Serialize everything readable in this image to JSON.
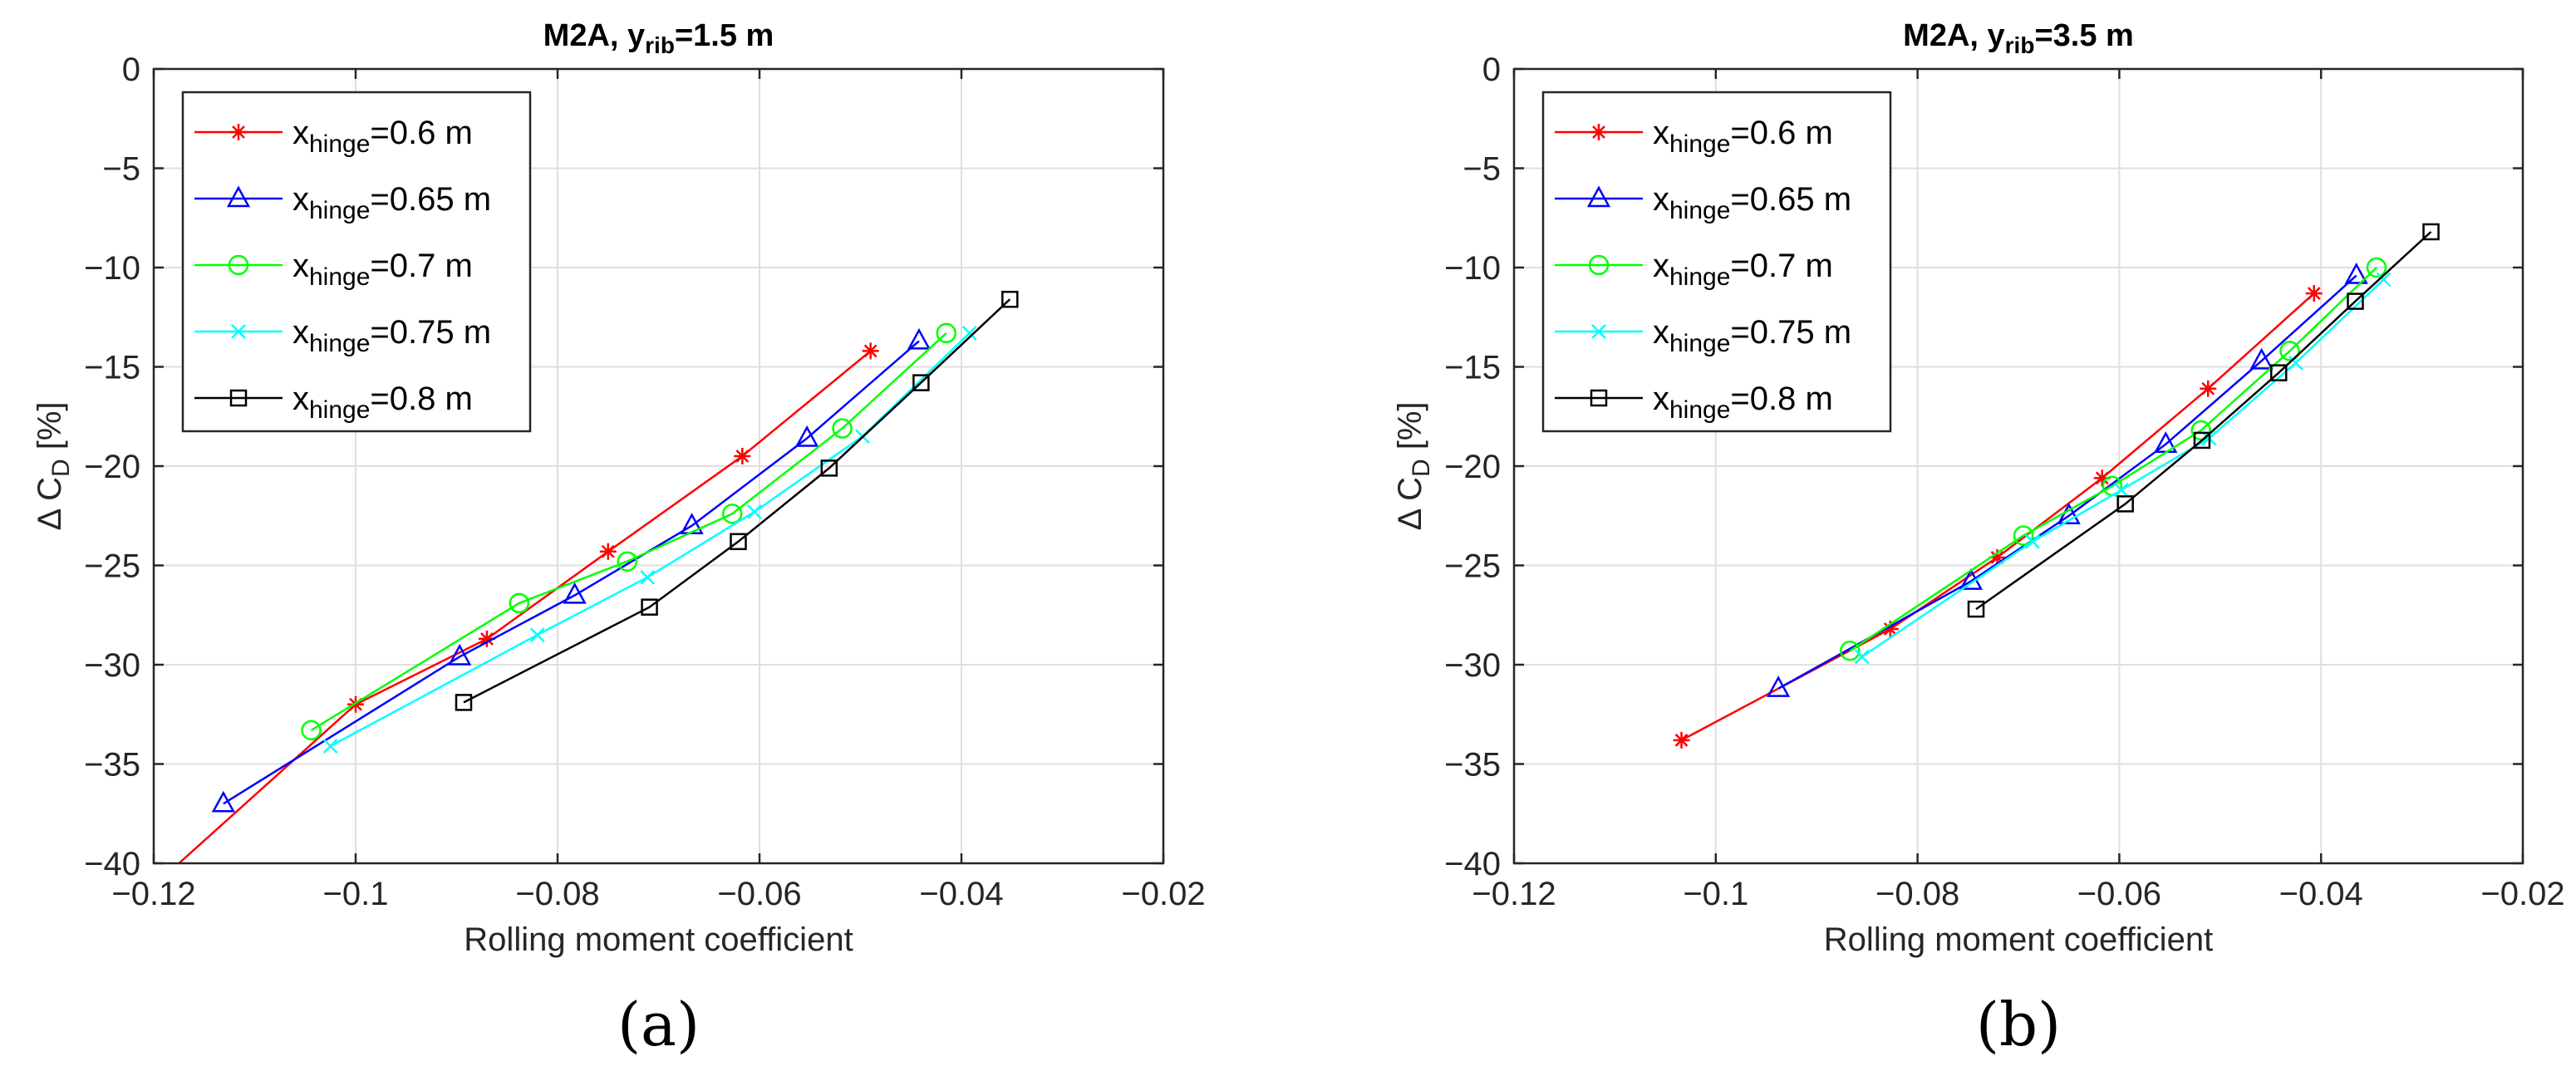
{
  "chart_data": [
    {
      "type": "line",
      "panel_label": "(a)",
      "title": {
        "main": "M2A, y",
        "sub": "rib",
        "tail": "=1.5 m"
      },
      "xlabel": "Rolling moment coefficient",
      "ylabel": {
        "main": "Δ C",
        "sub": "D",
        "tail": " [%]"
      },
      "xlim": [
        -0.12,
        -0.02
      ],
      "ylim": [
        -40,
        0
      ],
      "xticks": [
        -0.12,
        -0.1,
        -0.08,
        -0.06,
        -0.04,
        -0.02
      ],
      "xtick_labels": [
        "−0.12",
        "−0.1",
        "−0.08",
        "−0.06",
        "−0.04",
        "−0.02"
      ],
      "yticks": [
        0,
        -5,
        -10,
        -15,
        -20,
        -25,
        -30,
        -35,
        -40
      ],
      "ytick_labels": [
        "0",
        "−5",
        "−10",
        "−15",
        "−20",
        "−25",
        "−30",
        "−35",
        "−40"
      ],
      "grid": true,
      "legend_position": "top-left",
      "series": [
        {
          "name": {
            "main": "x",
            "sub": "hinge",
            "tail": "=0.6 m"
          },
          "color": "#ff0000",
          "marker": "star",
          "x": [
            -0.1175,
            -0.1,
            -0.087,
            -0.075,
            -0.0617,
            -0.049
          ],
          "y": [
            -40.0,
            -32.0,
            -28.7,
            -24.3,
            -19.5,
            -14.2
          ]
        },
        {
          "name": {
            "main": "x",
            "sub": "hinge",
            "tail": "=0.65 m"
          },
          "color": "#0000ff",
          "marker": "triangle",
          "x": [
            -0.1131,
            -0.0897,
            -0.0783,
            -0.0667,
            -0.0553,
            -0.0442
          ],
          "y": [
            -37.0,
            -29.6,
            -26.5,
            -23.0,
            -18.6,
            -13.7
          ]
        },
        {
          "name": {
            "main": "x",
            "sub": "hinge",
            "tail": "=0.7 m"
          },
          "color": "#00ff00",
          "marker": "circle",
          "x": [
            -0.1044,
            -0.0838,
            -0.0731,
            -0.0627,
            -0.0518,
            -0.0415
          ],
          "y": [
            -33.3,
            -26.9,
            -24.8,
            -22.4,
            -18.1,
            -13.3
          ]
        },
        {
          "name": {
            "main": "x",
            "sub": "hinge",
            "tail": "=0.75 m"
          },
          "color": "#00ffff",
          "marker": "x",
          "x": [
            -0.1025,
            -0.082,
            -0.0711,
            -0.0605,
            -0.0498,
            -0.0392
          ],
          "y": [
            -34.1,
            -28.5,
            -25.6,
            -22.3,
            -18.5,
            -13.3
          ]
        },
        {
          "name": {
            "main": "x",
            "sub": "hinge",
            "tail": "=0.8 m"
          },
          "color": "#000000",
          "marker": "square",
          "x": [
            -0.0893,
            -0.0709,
            -0.0621,
            -0.0531,
            -0.044,
            -0.0352
          ],
          "y": [
            -31.9,
            -27.1,
            -23.8,
            -20.1,
            -15.8,
            -11.6
          ]
        }
      ]
    },
    {
      "type": "line",
      "panel_label": "(b)",
      "title": {
        "main": "M2A, y",
        "sub": "rib",
        "tail": "=3.5 m"
      },
      "xlabel": "Rolling moment coefficient",
      "ylabel": {
        "main": "Δ C",
        "sub": "D",
        "tail": " [%]"
      },
      "xlim": [
        -0.12,
        -0.02
      ],
      "ylim": [
        -40,
        0
      ],
      "xticks": [
        -0.12,
        -0.1,
        -0.08,
        -0.06,
        -0.04,
        -0.02
      ],
      "xtick_labels": [
        "−0.12",
        "−0.1",
        "−0.08",
        "−0.06",
        "−0.04",
        "−0.02"
      ],
      "yticks": [
        0,
        -5,
        -10,
        -15,
        -20,
        -25,
        -30,
        -35,
        -40
      ],
      "ytick_labels": [
        "0",
        "−5",
        "−10",
        "−15",
        "−20",
        "−25",
        "−30",
        "−35",
        "−40"
      ],
      "grid": true,
      "legend_position": "top-left",
      "series": [
        {
          "name": {
            "main": "x",
            "sub": "hinge",
            "tail": "=0.6 m"
          },
          "color": "#ff0000",
          "marker": "star",
          "x": [
            -0.1034,
            -0.0827,
            -0.0721,
            -0.0617,
            -0.0512,
            -0.0407
          ],
          "y": [
            -33.8,
            -28.2,
            -24.6,
            -20.6,
            -16.1,
            -11.3
          ]
        },
        {
          "name": {
            "main": "x",
            "sub": "hinge",
            "tail": "=0.65 m"
          },
          "color": "#0000ff",
          "marker": "triangle",
          "x": [
            -0.0938,
            -0.0747,
            -0.065,
            -0.0554,
            -0.0459,
            -0.0365
          ],
          "y": [
            -31.2,
            -25.8,
            -22.5,
            -18.9,
            -14.7,
            -10.4
          ]
        },
        {
          "name": {
            "main": "x",
            "sub": "hinge",
            "tail": "=0.7 m"
          },
          "color": "#00ff00",
          "marker": "circle",
          "x": [
            -0.0867,
            -0.0695,
            -0.0607,
            -0.0519,
            -0.0431,
            -0.0345
          ],
          "y": [
            -29.3,
            -23.5,
            -21.0,
            -18.2,
            -14.2,
            -10.0
          ]
        },
        {
          "name": {
            "main": "x",
            "sub": "hinge",
            "tail": "=0.75 m"
          },
          "color": "#00ffff",
          "marker": "x",
          "x": [
            -0.0855,
            -0.0686,
            -0.0598,
            -0.0511,
            -0.0425,
            -0.0338
          ],
          "y": [
            -29.6,
            -23.8,
            -21.2,
            -18.6,
            -14.8,
            -10.6
          ]
        },
        {
          "name": {
            "main": "x",
            "sub": "hinge",
            "tail": "=0.8 m"
          },
          "color": "#000000",
          "marker": "square",
          "x": [
            -0.0742,
            -0.0594,
            -0.0518,
            -0.0442,
            -0.0366,
            -0.0291
          ],
          "y": [
            -27.2,
            -21.9,
            -18.7,
            -15.3,
            -11.7,
            -8.2
          ]
        }
      ]
    }
  ]
}
